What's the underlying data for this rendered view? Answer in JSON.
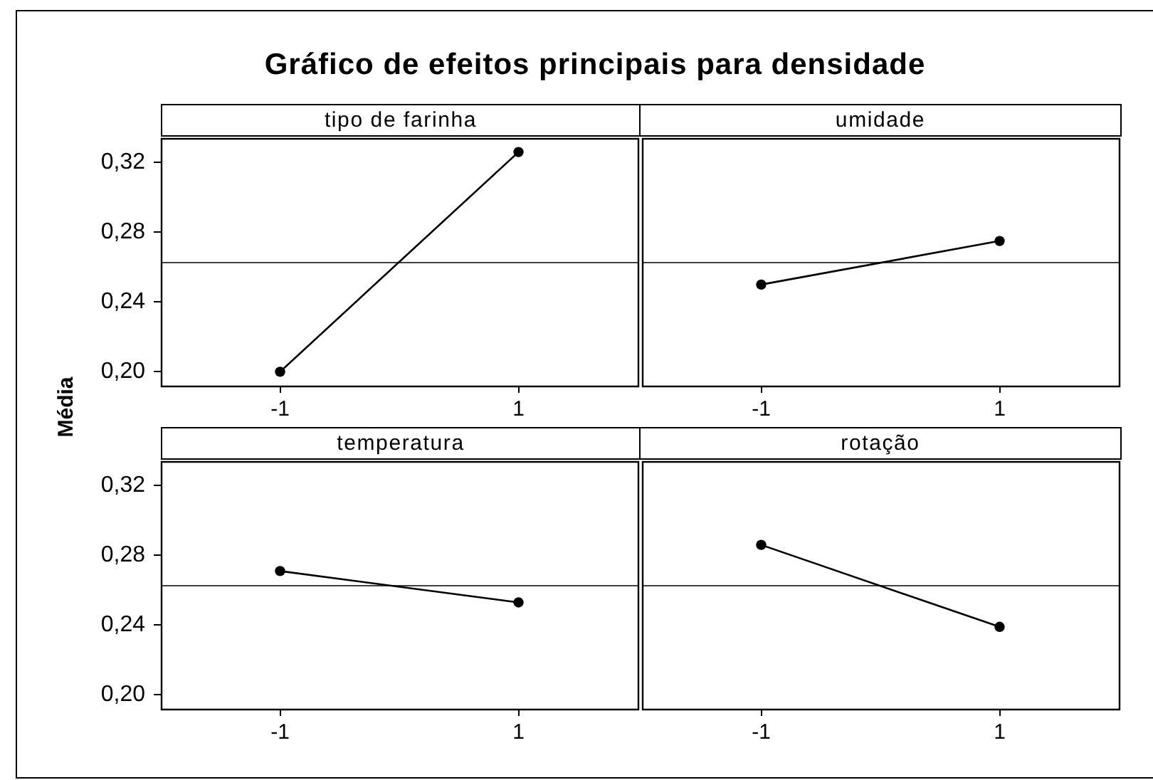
{
  "chart_data": [
    {
      "type": "line",
      "title": "Gráfico de efeitos principais para densidade",
      "subtitle": "tipo de farinha",
      "ylabel": "Média",
      "categories": [
        "-1",
        "1"
      ],
      "values": [
        0.2,
        0.326
      ],
      "color": "#000000",
      "marker": "circle",
      "ylim": [
        0.192,
        0.334
      ],
      "yticks": [
        {
          "value": 0.2,
          "label": "0,20"
        },
        {
          "value": 0.24,
          "label": "0,24"
        },
        {
          "value": 0.28,
          "label": "0,28"
        },
        {
          "value": 0.32,
          "label": "0,32"
        }
      ],
      "ref_lines": [
        {
          "axis": "y",
          "value": 0.263,
          "color": "#404040"
        }
      ]
    },
    {
      "type": "line",
      "subtitle": "umidade",
      "categories": [
        "-1",
        "1"
      ],
      "values": [
        0.25,
        0.275
      ],
      "color": "#000000",
      "marker": "circle",
      "ylim": [
        0.192,
        0.334
      ],
      "tick_labels": "x",
      "ref_lines": [
        {
          "axis": "y",
          "value": 0.263,
          "color": "#404040"
        }
      ]
    },
    {
      "type": "line",
      "subtitle": "temperatura",
      "categories": [
        "-1",
        "1"
      ],
      "values": [
        0.271,
        0.253
      ],
      "color": "#000000",
      "marker": "circle",
      "ylim": [
        0.192,
        0.334
      ],
      "yticks": [
        {
          "value": 0.2,
          "label": "0,20"
        },
        {
          "value": 0.24,
          "label": "0,24"
        },
        {
          "value": 0.28,
          "label": "0,28"
        },
        {
          "value": 0.32,
          "label": "0,32"
        }
      ],
      "ref_lines": [
        {
          "axis": "y",
          "value": 0.263,
          "color": "#404040"
        }
      ]
    },
    {
      "type": "line",
      "subtitle": "rotação",
      "categories": [
        "-1",
        "1"
      ],
      "values": [
        0.286,
        0.239
      ],
      "color": "#000000",
      "marker": "circle",
      "ylim": [
        0.192,
        0.334
      ],
      "tick_labels": "x",
      "ref_lines": [
        {
          "axis": "y",
          "value": 0.263,
          "color": "#404040"
        }
      ]
    }
  ]
}
